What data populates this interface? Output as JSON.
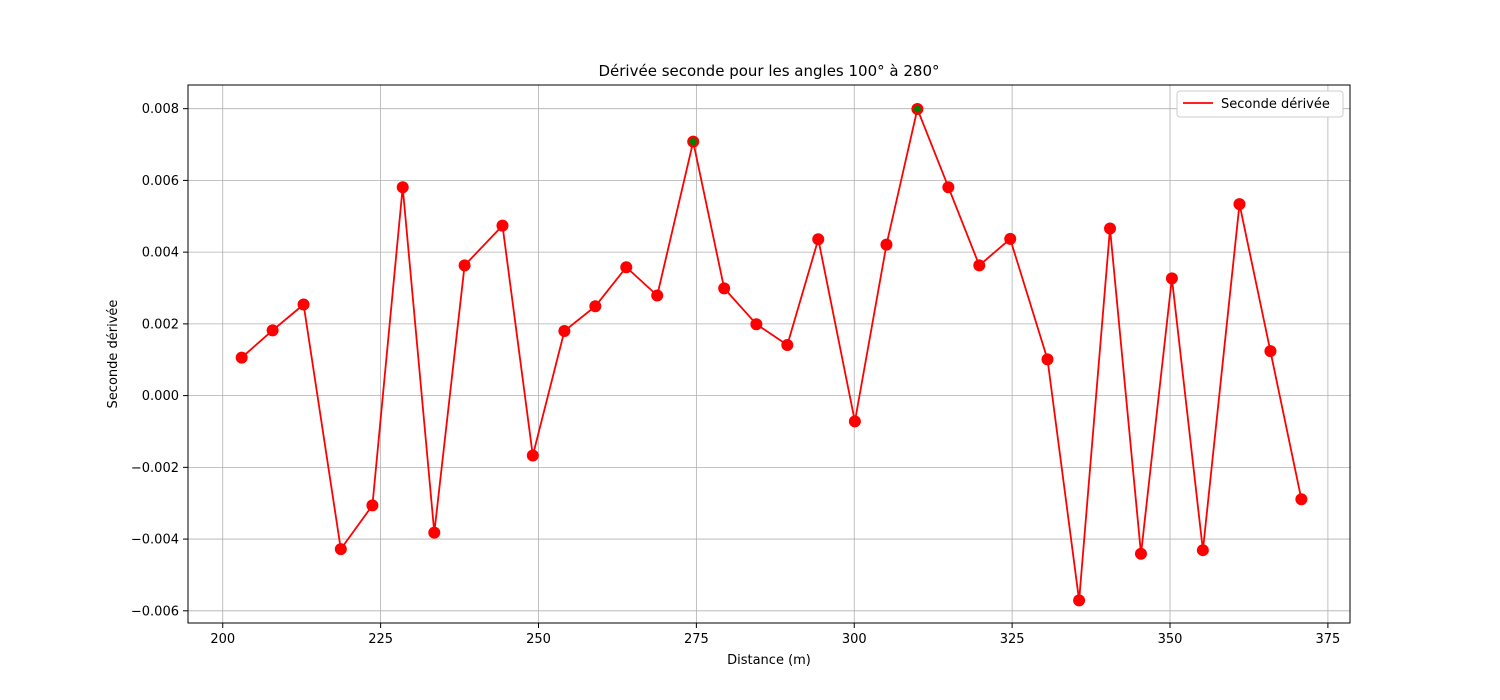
{
  "chart_data": {
    "type": "line",
    "title": "Dérivée seconde pour les angles 100° à 280°",
    "xlabel": "Distance (m)",
    "ylabel": "Seconde dérivée",
    "xlim": [
      194.5,
      378.5
    ],
    "ylim": [
      -0.00634,
      0.00866
    ],
    "x_ticks": [
      200,
      225,
      250,
      275,
      300,
      325,
      350,
      375
    ],
    "x_tick_labels": [
      "200",
      "225",
      "250",
      "275",
      "300",
      "325",
      "350",
      "375"
    ],
    "y_ticks": [
      -0.006,
      -0.004,
      -0.002,
      0.0,
      0.002,
      0.004,
      0.006,
      0.008
    ],
    "y_tick_labels": [
      "−0.006",
      "−0.004",
      "−0.002",
      "0.000",
      "0.002",
      "0.004",
      "0.006",
      "0.008"
    ],
    "grid": true,
    "legend_position": "top-right",
    "line_color": "#ff0000",
    "marker_color": "#ff0000",
    "highlight_color": "#008000",
    "series": [
      {
        "name": "Seconde dérivée",
        "x": [
          203.0,
          207.9,
          212.8,
          218.7,
          223.7,
          228.5,
          233.5,
          238.3,
          244.3,
          249.1,
          254.1,
          259.0,
          263.9,
          268.8,
          274.5,
          279.4,
          284.5,
          289.4,
          294.3,
          300.1,
          305.1,
          310.0,
          314.9,
          319.8,
          324.7,
          330.6,
          335.6,
          340.5,
          345.4,
          350.3,
          355.2,
          361.0,
          365.9,
          370.8
        ],
        "y": [
          0.00106,
          0.00182,
          0.00254,
          -0.00428,
          -0.00306,
          0.00581,
          -0.00382,
          0.00363,
          0.00474,
          -0.00167,
          0.0018,
          0.00249,
          0.00358,
          0.00279,
          0.00708,
          0.00299,
          0.00199,
          0.00141,
          0.00436,
          -0.00072,
          0.00421,
          0.00799,
          0.00581,
          0.00363,
          0.00437,
          0.00101,
          -0.00571,
          0.00466,
          -0.00441,
          0.00327,
          -0.00431,
          0.00534,
          0.00124,
          -0.00289
        ]
      }
    ],
    "highlighted_points": [
      {
        "x": 274.5,
        "y": 0.00708
      },
      {
        "x": 310.0,
        "y": 0.00799
      }
    ]
  }
}
